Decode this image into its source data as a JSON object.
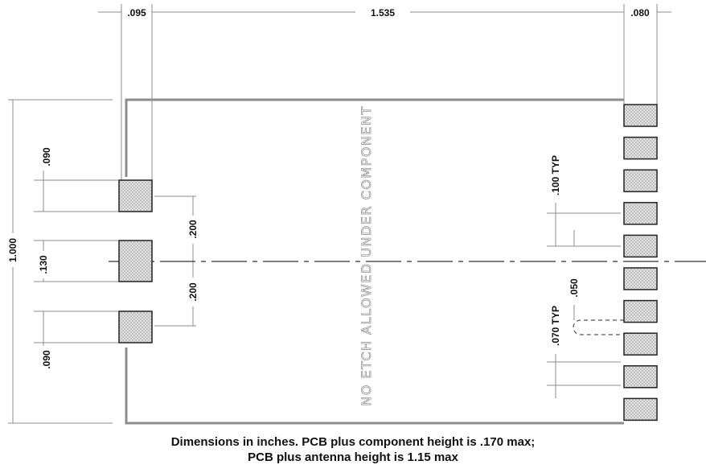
{
  "dimensions": {
    "left_margin": ".095",
    "board_length": "1.535",
    "right_margin": ".080",
    "board_height": "1.000",
    "pad_top_height": ".090",
    "pad_center_height": ".130",
    "pad_bottom_height": ".090",
    "pad_spacing_upper": ".200",
    "pad_spacing_lower": ".200",
    "pin_pitch": ".100 TYP",
    "pin_gap": ".050",
    "pin_width": ".070 TYP"
  },
  "keepout_note": "NO ETCH ALLOWED UNDER COMPONENT",
  "caption": {
    "line1": "Dimensions in inches. PCB plus component height is .170 max;",
    "line2": "PCB plus antenna height is 1.15 max"
  },
  "colors": {
    "line": "#8c8c8c",
    "pad_fill": "#c9c9c9",
    "pad_border": "#222222",
    "text": "#111111"
  }
}
